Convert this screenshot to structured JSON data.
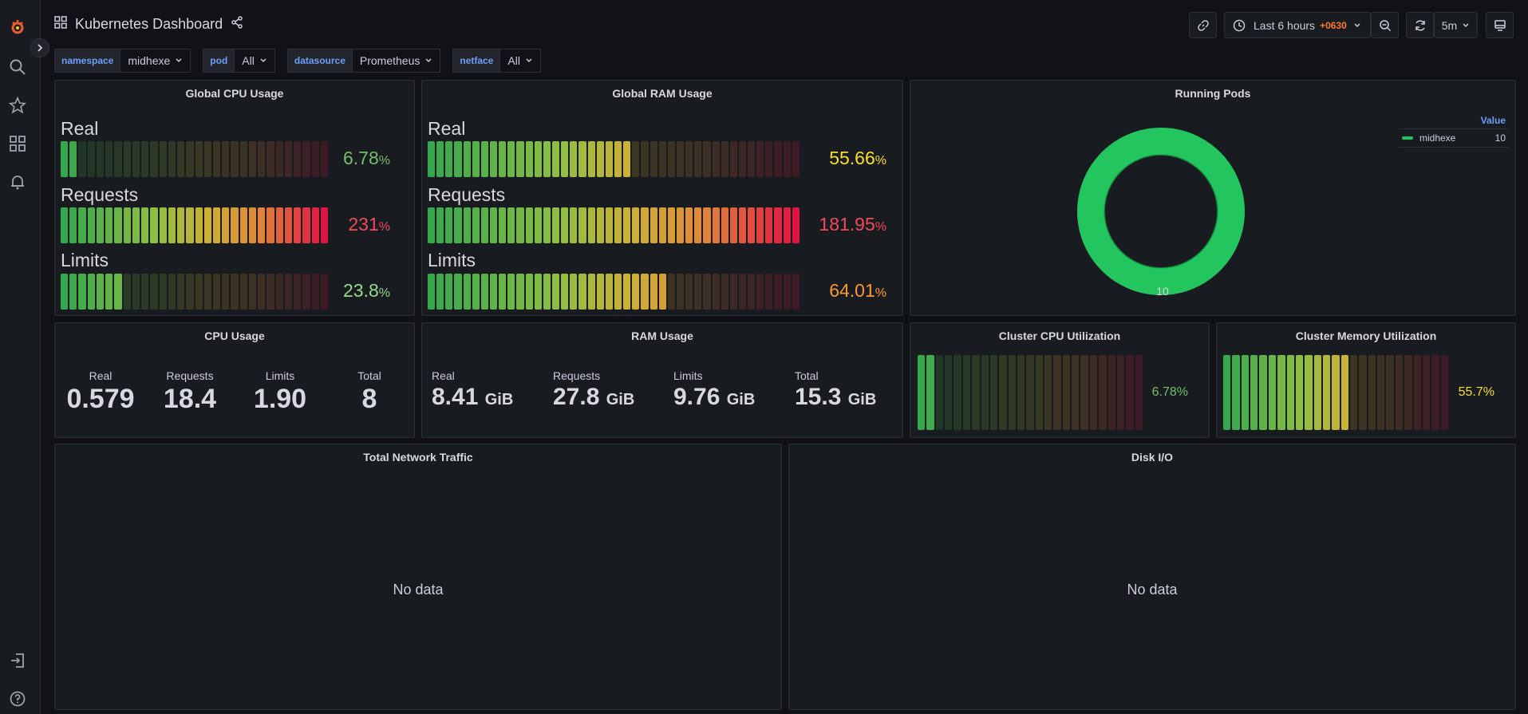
{
  "app": {
    "dashboard_title": "Kubernetes Dashboard"
  },
  "sidebar": {
    "icons": [
      "grafana-logo-icon",
      "search-icon",
      "star-icon",
      "dashboards-icon",
      "bell-icon",
      "sign-in-icon",
      "help-icon"
    ]
  },
  "toolbar": {
    "time_range": "Last 6 hours",
    "timezone": "+0630",
    "refresh_interval": "5m"
  },
  "variables": [
    {
      "label": "namespace",
      "value": "midhexe"
    },
    {
      "label": "pod",
      "value": "All"
    },
    {
      "label": "datasource",
      "value": "Prometheus"
    },
    {
      "label": "netface",
      "value": "All"
    }
  ],
  "panels": {
    "global_cpu": {
      "title": "Global CPU Usage",
      "rows": [
        {
          "label": "Real",
          "value": "6.78",
          "unit": "%",
          "fraction": 0.0678,
          "color": "#73bf69"
        },
        {
          "label": "Requests",
          "value": "231",
          "unit": "%",
          "fraction": 1.0,
          "color": "#f2495c"
        },
        {
          "label": "Limits",
          "value": "23.8",
          "unit": "%",
          "fraction": 0.238,
          "color": "#96d98d"
        }
      ]
    },
    "global_ram": {
      "title": "Global RAM Usage",
      "rows": [
        {
          "label": "Real",
          "value": "55.66",
          "unit": "%",
          "fraction": 0.5566,
          "color": "#fade2a"
        },
        {
          "label": "Requests",
          "value": "181.95",
          "unit": "%",
          "fraction": 1.0,
          "color": "#f2495c"
        },
        {
          "label": "Limits",
          "value": "64.01",
          "unit": "%",
          "fraction": 0.6401,
          "color": "#ff9830"
        }
      ]
    },
    "running_pods": {
      "title": "Running Pods",
      "legend_header": "Value",
      "legend": [
        {
          "name": "midhexe",
          "value": "10"
        }
      ],
      "center_label": "10",
      "color": "#22c55e"
    },
    "cpu_usage": {
      "title": "CPU Usage",
      "stats": [
        {
          "label": "Real",
          "value": "0.579"
        },
        {
          "label": "Requests",
          "value": "18.4"
        },
        {
          "label": "Limits",
          "value": "1.90"
        },
        {
          "label": "Total",
          "value": "8"
        }
      ]
    },
    "ram_usage": {
      "title": "RAM Usage",
      "stats": [
        {
          "label": "Real",
          "value": "8.41",
          "unit": "GiB"
        },
        {
          "label": "Requests",
          "value": "27.8",
          "unit": "GiB"
        },
        {
          "label": "Limits",
          "value": "9.76",
          "unit": "GiB"
        },
        {
          "label": "Total",
          "value": "15.3",
          "unit": "GiB"
        }
      ]
    },
    "cluster_cpu": {
      "title": "Cluster CPU Utilization",
      "value": "6.78%",
      "fraction": 0.0678,
      "color": "#73bf69"
    },
    "cluster_mem": {
      "title": "Cluster Memory Utilization",
      "value": "55.7%",
      "fraction": 0.557,
      "color": "#fade2a"
    },
    "network": {
      "title": "Total Network Traffic",
      "message": "No data"
    },
    "disk": {
      "title": "Disk I/O",
      "message": "No data"
    }
  }
}
